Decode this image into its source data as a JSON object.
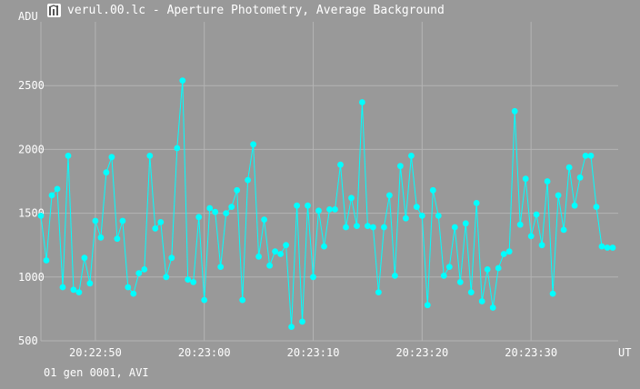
{
  "window": {
    "title": "verul.00.lc - Aperture Photometry, Average Background",
    "icon": "photometry-app-icon"
  },
  "footer": {
    "status": "01 gen 0001, AVI"
  },
  "colors": {
    "background": "#999999",
    "grid": "#b4b4b4",
    "series": "#00ffff",
    "text": "#ffffff"
  },
  "chart_data": {
    "type": "line",
    "title": "",
    "xlabel": "UT",
    "ylabel": "ADU",
    "xlim": [
      "20:22:45",
      "20:23:38"
    ],
    "ylim": [
      500,
      3000
    ],
    "yticks": [
      500,
      1000,
      1500,
      2000,
      2500
    ],
    "xticks": [
      "20:22:50",
      "20:23:00",
      "20:23:10",
      "20:23:20",
      "20:23:30"
    ],
    "grid": true,
    "legend": "none",
    "markers": "filled-circle",
    "x_seconds_after_20_22_45": "omitted",
    "series": [
      {
        "x": [
          "20:22:45.0",
          "20:22:45.5",
          "20:22:46.0",
          "20:22:46.5",
          "20:22:47.0",
          "20:22:47.5",
          "20:22:48.0",
          "20:22:48.5",
          "20:22:49.0",
          "20:22:49.5",
          "20:22:50.0",
          "20:22:50.5",
          "20:22:51.0",
          "20:22:51.5",
          "20:22:52.0",
          "20:22:52.5",
          "20:22:53.0",
          "20:22:53.5",
          "20:22:54.0",
          "20:22:54.5",
          "20:22:55.0",
          "20:22:55.5",
          "20:22:56.0",
          "20:22:56.5",
          "20:22:57.0",
          "20:22:57.5",
          "20:22:58.0",
          "20:22:58.5",
          "20:22:59.0",
          "20:22:59.5",
          "20:23:00.0",
          "20:23:00.5",
          "20:23:01.0",
          "20:23:01.5",
          "20:23:02.0",
          "20:23:02.5",
          "20:23:03.0",
          "20:23:03.5",
          "20:23:04.0",
          "20:23:04.5",
          "20:23:05.0",
          "20:23:05.5",
          "20:23:06.0",
          "20:23:06.5",
          "20:23:07.0",
          "20:23:07.5",
          "20:23:08.0",
          "20:23:08.5",
          "20:23:09.0",
          "20:23:09.5",
          "20:23:10.0",
          "20:23:10.5",
          "20:23:11.0",
          "20:23:11.5",
          "20:23:12.0",
          "20:23:12.5",
          "20:23:13.0",
          "20:23:13.5",
          "20:23:14.0",
          "20:23:14.5",
          "20:23:15.0",
          "20:23:15.5",
          "20:23:16.0",
          "20:23:16.5",
          "20:23:17.0",
          "20:23:17.5",
          "20:23:18.0",
          "20:23:18.5",
          "20:23:19.0",
          "20:23:19.5",
          "20:23:20.0",
          "20:23:20.5",
          "20:23:21.0",
          "20:23:21.5",
          "20:23:22.0",
          "20:23:22.5",
          "20:23:23.0",
          "20:23:23.5",
          "20:23:24.0",
          "20:23:24.5",
          "20:23:25.0",
          "20:23:25.5",
          "20:23:26.0",
          "20:23:26.5",
          "20:23:27.0",
          "20:23:27.5",
          "20:23:28.0",
          "20:23:28.5",
          "20:23:29.0",
          "20:23:29.5",
          "20:23:30.0",
          "20:23:30.5",
          "20:23:31.0",
          "20:23:31.5",
          "20:23:32.0",
          "20:23:32.5",
          "20:23:33.0",
          "20:23:33.5",
          "20:23:34.0",
          "20:23:34.5",
          "20:23:35.0",
          "20:23:35.5",
          "20:23:36.0",
          "20:23:36.5",
          "20:23:37.0",
          "20:23:37.5"
        ],
        "y": [
          1480,
          1130,
          1640,
          1690,
          920,
          1950,
          900,
          880,
          1150,
          950,
          1440,
          1310,
          1820,
          1940,
          1300,
          1440,
          920,
          870,
          1030,
          1060,
          1950,
          1380,
          1430,
          1000,
          1150,
          2010,
          2540,
          980,
          960,
          1470,
          820,
          1540,
          1510,
          1080,
          1500,
          1550,
          1680,
          820,
          1760,
          2040,
          1160,
          1450,
          1090,
          1200,
          1180,
          1250,
          610,
          1560,
          650,
          1560,
          1000,
          1520,
          1240,
          1530,
          1530,
          1880,
          1390,
          1620,
          1400,
          2370,
          1400,
          1390,
          880,
          1390,
          1640,
          1010,
          1870,
          1460,
          1950,
          1550,
          1480,
          780,
          1680,
          1480,
          1010,
          1080,
          1390,
          960,
          1420,
          880,
          1580,
          810,
          1060,
          760,
          1070,
          1180,
          1200,
          2300,
          1410,
          1770,
          1320,
          1490,
          1250,
          1750,
          870,
          1640,
          1370,
          1860,
          1560,
          1780,
          1950,
          1950,
          1550,
          1240,
          1230,
          1230
        ]
      }
    ]
  }
}
